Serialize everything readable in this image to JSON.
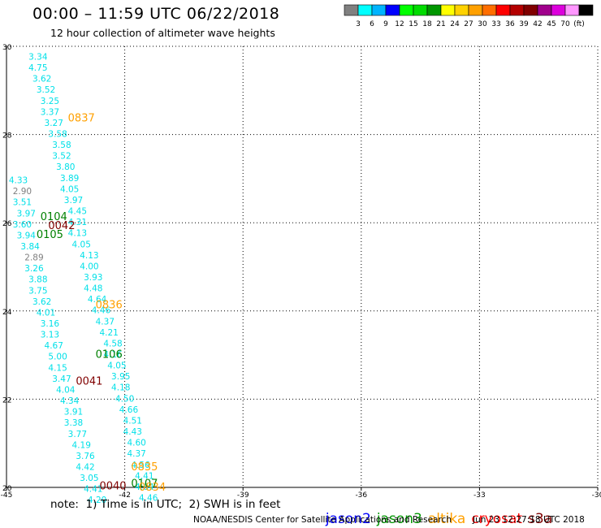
{
  "header": {
    "title": "00:00 – 11:59 UTC 06/22/2018",
    "subtitle": "12 hour collection of altimeter wave heights"
  },
  "colorbar": {
    "colors": [
      "#808080",
      "#00ffff",
      "#00b4ff",
      "#0000ff",
      "#00ff00",
      "#00dc00",
      "#009600",
      "#ffff00",
      "#ffd200",
      "#ffa000",
      "#ff6e00",
      "#ff0000",
      "#b40000",
      "#800000",
      "#a0008c",
      "#dc00dc",
      "#ff96ff",
      "#000000"
    ],
    "labels": [
      "3",
      "6",
      "9",
      "12",
      "15",
      "18",
      "21",
      "24",
      "27",
      "30",
      "33",
      "36",
      "39",
      "42",
      "45",
      "70",
      "(ft)"
    ]
  },
  "footer": {
    "note": "note:  1) Time is in UTC;  2) SWH is in feet",
    "satellites": [
      {
        "name": "jason2",
        "color": "#0000ff"
      },
      {
        "name": "jason3",
        "color": "#009600"
      },
      {
        "name": "altika",
        "color": "#ffa000"
      },
      {
        "name": "cryosat",
        "color": "#ff0000"
      },
      {
        "name": "s3a",
        "color": "#800000"
      }
    ],
    "credit": "NOAA/NESDIS Center for Satellite Applications and Research",
    "timestamp": "Jun 23 12:27:18 UTC 2018"
  },
  "chart_data": {
    "type": "scatter",
    "xlim": [
      -45,
      -30
    ],
    "ylim": [
      20,
      30
    ],
    "x_ticks": [
      "-45",
      "-42",
      "-39",
      "-36",
      "-33",
      "-30"
    ],
    "y_ticks": [
      "30",
      "28",
      "26",
      "24",
      "22",
      "20"
    ],
    "grid": true,
    "grid_style": "dotted",
    "colors": {
      "cyan": "#00e0e8",
      "gray": "#808080",
      "green": "#008000",
      "darkred": "#800000",
      "orange": "#ffa000"
    },
    "pass_times": [
      {
        "text": "0837",
        "x": -43.1,
        "y": 28.39,
        "color": "#ffa000"
      },
      {
        "text": "0104",
        "x": -43.8,
        "y": 26.15,
        "color": "#008000"
      },
      {
        "text": "0042",
        "x": -43.6,
        "y": 25.95,
        "color": "#800000"
      },
      {
        "text": "0105",
        "x": -43.9,
        "y": 25.75,
        "color": "#008000"
      },
      {
        "text": "0836",
        "x": -42.4,
        "y": 24.15,
        "color": "#ffa000"
      },
      {
        "text": "0106",
        "x": -42.4,
        "y": 23.03,
        "color": "#008000"
      },
      {
        "text": "0041",
        "x": -42.9,
        "y": 22.42,
        "color": "#800000"
      },
      {
        "text": "0835",
        "x": -41.5,
        "y": 20.48,
        "color": "#ffa000"
      },
      {
        "text": "0107",
        "x": -41.5,
        "y": 20.1,
        "color": "#008000"
      },
      {
        "text": "0040",
        "x": -42.3,
        "y": 20.05,
        "color": "#800000"
      },
      {
        "text": "0834",
        "x": -41.3,
        "y": 20.02,
        "color": "#ffa000"
      }
    ],
    "points": [
      {
        "x": -44.2,
        "y": 29.77,
        "v": "3.34",
        "c": "cyan"
      },
      {
        "x": -44.2,
        "y": 29.52,
        "v": "4.75",
        "c": "cyan"
      },
      {
        "x": -44.1,
        "y": 29.27,
        "v": "3.62",
        "c": "cyan"
      },
      {
        "x": -44.0,
        "y": 29.02,
        "v": "3.52",
        "c": "cyan"
      },
      {
        "x": -43.9,
        "y": 28.77,
        "v": "3.25",
        "c": "cyan"
      },
      {
        "x": -43.9,
        "y": 28.52,
        "v": "3.37",
        "c": "cyan"
      },
      {
        "x": -43.8,
        "y": 28.27,
        "v": "3.27",
        "c": "cyan"
      },
      {
        "x": -43.7,
        "y": 28.02,
        "v": "3.58",
        "c": "cyan"
      },
      {
        "x": -43.6,
        "y": 27.77,
        "v": "3.58",
        "c": "cyan"
      },
      {
        "x": -43.6,
        "y": 27.52,
        "v": "3.52",
        "c": "cyan"
      },
      {
        "x": -43.5,
        "y": 27.27,
        "v": "3.80",
        "c": "cyan"
      },
      {
        "x": -43.4,
        "y": 27.02,
        "v": "3.89",
        "c": "cyan"
      },
      {
        "x": -43.4,
        "y": 26.77,
        "v": "4.05",
        "c": "cyan"
      },
      {
        "x": -43.3,
        "y": 26.52,
        "v": "3.97",
        "c": "cyan"
      },
      {
        "x": -43.2,
        "y": 26.27,
        "v": "4.45",
        "c": "cyan"
      },
      {
        "x": -43.2,
        "y": 26.02,
        "v": "4.31",
        "c": "cyan"
      },
      {
        "x": -44.7,
        "y": 26.97,
        "v": "4.33",
        "c": "cyan"
      },
      {
        "x": -44.6,
        "y": 26.72,
        "v": "2.90",
        "c": "gray"
      },
      {
        "x": -44.6,
        "y": 26.47,
        "v": "3.51",
        "c": "cyan"
      },
      {
        "x": -44.5,
        "y": 26.22,
        "v": "3.97",
        "c": "cyan"
      },
      {
        "x": -44.6,
        "y": 25.97,
        "v": "3.60",
        "c": "cyan"
      },
      {
        "x": -44.5,
        "y": 25.72,
        "v": "3.94",
        "c": "cyan"
      },
      {
        "x": -44.4,
        "y": 25.47,
        "v": "3.84",
        "c": "cyan"
      },
      {
        "x": -44.3,
        "y": 25.22,
        "v": "2.89",
        "c": "gray"
      },
      {
        "x": -44.3,
        "y": 24.97,
        "v": "3.26",
        "c": "cyan"
      },
      {
        "x": -44.2,
        "y": 24.72,
        "v": "3.88",
        "c": "cyan"
      },
      {
        "x": -44.2,
        "y": 24.47,
        "v": "3.75",
        "c": "cyan"
      },
      {
        "x": -44.1,
        "y": 24.22,
        "v": "3.62",
        "c": "cyan"
      },
      {
        "x": -44.0,
        "y": 23.97,
        "v": "4.01",
        "c": "cyan"
      },
      {
        "x": -43.9,
        "y": 23.72,
        "v": "3.16",
        "c": "cyan"
      },
      {
        "x": -43.9,
        "y": 23.47,
        "v": "3.13",
        "c": "cyan"
      },
      {
        "x": -43.8,
        "y": 23.22,
        "v": "4.67",
        "c": "cyan"
      },
      {
        "x": -43.7,
        "y": 22.97,
        "v": "5.00",
        "c": "cyan"
      },
      {
        "x": -43.7,
        "y": 22.72,
        "v": "4.15",
        "c": "cyan"
      },
      {
        "x": -43.6,
        "y": 22.47,
        "v": "3.47",
        "c": "cyan"
      },
      {
        "x": -43.5,
        "y": 22.22,
        "v": "4.04",
        "c": "cyan"
      },
      {
        "x": -43.4,
        "y": 21.97,
        "v": "4.34",
        "c": "cyan"
      },
      {
        "x": -43.3,
        "y": 21.72,
        "v": "3.91",
        "c": "cyan"
      },
      {
        "x": -43.3,
        "y": 21.47,
        "v": "3.38",
        "c": "cyan"
      },
      {
        "x": -43.2,
        "y": 21.22,
        "v": "3.77",
        "c": "cyan"
      },
      {
        "x": -43.1,
        "y": 20.97,
        "v": "4.19",
        "c": "cyan"
      },
      {
        "x": -43.0,
        "y": 20.72,
        "v": "3.76",
        "c": "cyan"
      },
      {
        "x": -43.0,
        "y": 20.47,
        "v": "4.42",
        "c": "cyan"
      },
      {
        "x": -42.9,
        "y": 20.22,
        "v": "3.05",
        "c": "cyan"
      },
      {
        "x": -42.8,
        "y": 19.97,
        "v": "4.41",
        "c": "cyan"
      },
      {
        "x": -42.7,
        "y": 19.72,
        "v": "4.20",
        "c": "cyan"
      },
      {
        "x": -42.6,
        "y": 19.47,
        "v": "4.31",
        "c": "cyan"
      },
      {
        "x": -43.2,
        "y": 25.77,
        "v": "4.13",
        "c": "cyan"
      },
      {
        "x": -43.1,
        "y": 25.52,
        "v": "4.05",
        "c": "cyan"
      },
      {
        "x": -42.9,
        "y": 25.27,
        "v": "4.13",
        "c": "cyan"
      },
      {
        "x": -42.9,
        "y": 25.02,
        "v": "4.00",
        "c": "cyan"
      },
      {
        "x": -42.8,
        "y": 24.77,
        "v": "3.93",
        "c": "cyan"
      },
      {
        "x": -42.8,
        "y": 24.52,
        "v": "4.48",
        "c": "cyan"
      },
      {
        "x": -42.7,
        "y": 24.27,
        "v": "4.64",
        "c": "cyan"
      },
      {
        "x": -42.6,
        "y": 24.02,
        "v": "4.46",
        "c": "cyan"
      },
      {
        "x": -42.5,
        "y": 23.77,
        "v": "4.37",
        "c": "cyan"
      },
      {
        "x": -42.4,
        "y": 23.52,
        "v": "4.21",
        "c": "cyan"
      },
      {
        "x": -42.3,
        "y": 23.27,
        "v": "4.58",
        "c": "cyan"
      },
      {
        "x": -42.3,
        "y": 23.02,
        "v": "4.16",
        "c": "cyan"
      },
      {
        "x": -42.2,
        "y": 22.77,
        "v": "4.05",
        "c": "cyan"
      },
      {
        "x": -42.1,
        "y": 22.52,
        "v": "3.95",
        "c": "cyan"
      },
      {
        "x": -42.1,
        "y": 22.27,
        "v": "4.18",
        "c": "cyan"
      },
      {
        "x": -42.0,
        "y": 22.02,
        "v": "4.50",
        "c": "cyan"
      },
      {
        "x": -41.9,
        "y": 21.77,
        "v": "4.66",
        "c": "cyan"
      },
      {
        "x": -41.8,
        "y": 21.52,
        "v": "4.51",
        "c": "cyan"
      },
      {
        "x": -41.8,
        "y": 21.27,
        "v": "4.43",
        "c": "cyan"
      },
      {
        "x": -41.7,
        "y": 21.02,
        "v": "4.60",
        "c": "cyan"
      },
      {
        "x": -41.7,
        "y": 20.77,
        "v": "4.37",
        "c": "cyan"
      },
      {
        "x": -41.6,
        "y": 20.52,
        "v": "4.56",
        "c": "cyan"
      },
      {
        "x": -41.5,
        "y": 20.27,
        "v": "4.41",
        "c": "cyan"
      },
      {
        "x": -41.5,
        "y": 20.02,
        "v": "4.64",
        "c": "cyan"
      },
      {
        "x": -41.4,
        "y": 19.77,
        "v": "4.46",
        "c": "cyan"
      }
    ]
  }
}
